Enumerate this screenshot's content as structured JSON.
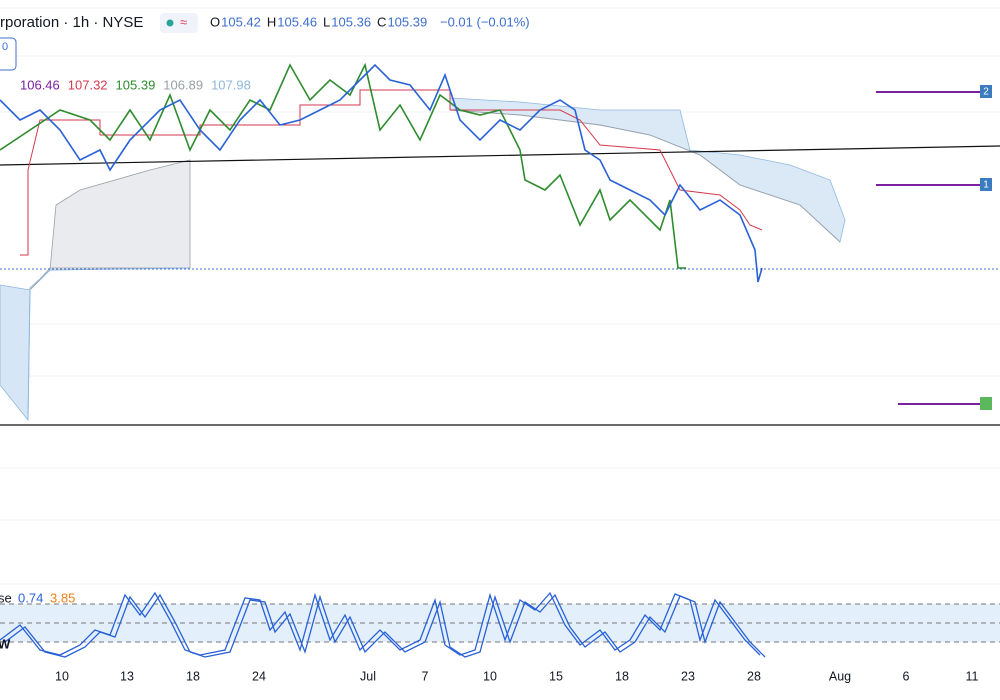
{
  "header": {
    "title": "rporation · 1h · NYSE",
    "ohlc": [
      {
        "label": "O",
        "value": "105.42"
      },
      {
        "label": "H",
        "value": "105.46"
      },
      {
        "label": "L",
        "value": "105.36"
      },
      {
        "label": "C",
        "value": "105.39"
      }
    ],
    "change": "−0.01 (−0.01%)"
  },
  "badge": "0",
  "indicator_values": [
    "106.46",
    "107.32",
    "105.39",
    "106.89",
    "107.98"
  ],
  "stoch": {
    "label": "se",
    "values": [
      "0.74",
      "3.85"
    ],
    "side_label": "W"
  },
  "markers": [
    "2",
    "1"
  ],
  "x_axis": [
    "10",
    "13",
    "18",
    "24",
    "Jul",
    "7",
    "10",
    "15",
    "18",
    "23",
    "28",
    "Aug",
    "6",
    "11"
  ]
}
